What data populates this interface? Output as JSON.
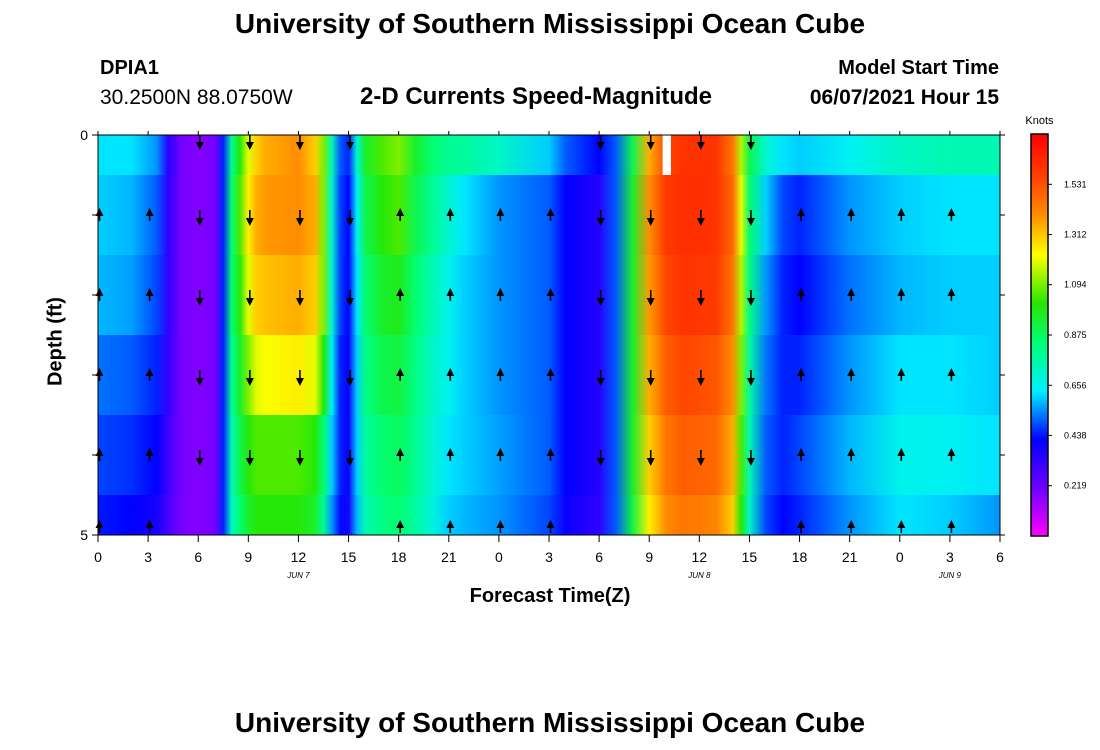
{
  "header": {
    "title": "University of Southern Mississippi Ocean Cube",
    "footer_title": "University of Southern Mississippi Ocean Cube",
    "station": "DPIA1",
    "coordinates": "30.2500N  88.0750W",
    "subtitle": "2-D Currents Speed-Magnitude",
    "model_start_label": "Model Start Time",
    "model_start_value": "06/07/2021 Hour 15"
  },
  "chart_data": {
    "type": "heatmap",
    "title": "2-D Currents Speed-Magnitude",
    "xlabel": "Forecast Time(Z)",
    "ylabel": "Depth (ft)",
    "x_hours": [
      0,
      3,
      6,
      9,
      12,
      15,
      18,
      21,
      24,
      27,
      30,
      33,
      36,
      39,
      42,
      45,
      48,
      51,
      54
    ],
    "x_tick_labels": [
      "0",
      "3",
      "6",
      "9",
      "12",
      "15",
      "18",
      "21",
      "0",
      "3",
      "6",
      "9",
      "12",
      "15",
      "18",
      "21",
      "0",
      "3",
      "6"
    ],
    "x_range": [
      0,
      54
    ],
    "y_range": [
      0,
      5
    ],
    "y_tick_labels": [
      "0",
      "5"
    ],
    "date_labels": [
      {
        "hour": 12,
        "text": "JUN 7"
      },
      {
        "hour": 36,
        "text": "JUN 8"
      },
      {
        "hour": 51,
        "text": "JUN 9"
      }
    ],
    "colorbar": {
      "label": "Knots",
      "min": 0.0,
      "max": 1.75,
      "ticks": [
        "1.531",
        "1.312",
        "1.094",
        "0.875",
        "0.656",
        "0.438",
        "0.219"
      ],
      "tick_values": [
        1.531,
        1.312,
        1.094,
        0.875,
        0.656,
        0.438,
        0.219
      ]
    },
    "layers": [
      {
        "depth_top": 0.0,
        "depth_bottom": 0.5,
        "hours": [
          0,
          2,
          3.5,
          4.2,
          5,
          6,
          7,
          7.5,
          8,
          8.5,
          9,
          9.5,
          10,
          12,
          13,
          13.5,
          14,
          14.5,
          15,
          15.5,
          16,
          17,
          18,
          19,
          20,
          21,
          22,
          24,
          27,
          28,
          30,
          31,
          32,
          33,
          34,
          35,
          37,
          38,
          38.5,
          39,
          40,
          41,
          42,
          45,
          48,
          51,
          54
        ],
        "speeds": [
          0.62,
          0.62,
          0.55,
          0.35,
          0.2,
          0.18,
          0.2,
          0.45,
          0.8,
          1.0,
          1.2,
          1.3,
          1.35,
          1.4,
          1.3,
          1.1,
          0.75,
          0.5,
          0.45,
          0.7,
          0.95,
          1.05,
          1.1,
          0.95,
          0.85,
          0.8,
          0.78,
          0.72,
          0.6,
          0.5,
          0.42,
          0.5,
          0.9,
          1.35,
          1.55,
          1.6,
          1.6,
          1.45,
          1.15,
          0.9,
          0.7,
          0.62,
          0.6,
          0.65,
          0.72,
          0.75,
          0.75
        ]
      },
      {
        "depth_top": 0.5,
        "depth_bottom": 1.5,
        "hours": [
          0,
          2,
          3.5,
          4.2,
          5,
          6,
          7,
          7.5,
          8,
          8.5,
          9,
          9.5,
          10,
          12,
          13,
          13.5,
          14,
          14.5,
          15,
          15.5,
          16,
          17,
          18,
          19,
          20,
          21,
          22,
          24,
          27,
          28,
          30,
          31,
          32,
          33,
          34,
          35,
          37,
          38,
          38.5,
          39,
          40,
          41,
          42,
          45,
          48,
          51,
          54
        ],
        "speeds": [
          0.6,
          0.58,
          0.5,
          0.33,
          0.2,
          0.18,
          0.2,
          0.45,
          0.85,
          1.05,
          1.25,
          1.35,
          1.38,
          1.4,
          1.35,
          1.1,
          0.7,
          0.48,
          0.42,
          0.65,
          0.9,
          1.0,
          1.05,
          0.9,
          0.8,
          0.7,
          0.62,
          0.55,
          0.5,
          0.42,
          0.35,
          0.5,
          0.95,
          1.4,
          1.58,
          1.62,
          1.6,
          1.48,
          1.2,
          0.85,
          0.6,
          0.48,
          0.45,
          0.55,
          0.6,
          0.62,
          0.62
        ]
      },
      {
        "depth_top": 1.5,
        "depth_bottom": 2.5,
        "hours": [
          0,
          2,
          3.5,
          4.2,
          5,
          6,
          7,
          7.5,
          8,
          8.5,
          9,
          9.5,
          10,
          12,
          13,
          13.5,
          14,
          14.5,
          15,
          15.5,
          16,
          17,
          18,
          19,
          20,
          21,
          22,
          24,
          27,
          28,
          30,
          31,
          32,
          33,
          34,
          35,
          37,
          38,
          38.5,
          39,
          40,
          41,
          42,
          45,
          48,
          51,
          54
        ],
        "speeds": [
          0.58,
          0.56,
          0.48,
          0.33,
          0.2,
          0.18,
          0.2,
          0.45,
          0.85,
          1.0,
          1.2,
          1.3,
          1.32,
          1.35,
          1.3,
          1.1,
          0.7,
          0.48,
          0.42,
          0.62,
          0.85,
          0.95,
          0.98,
          0.85,
          0.75,
          0.66,
          0.6,
          0.55,
          0.5,
          0.42,
          0.35,
          0.5,
          0.95,
          1.38,
          1.55,
          1.6,
          1.58,
          1.45,
          1.15,
          0.82,
          0.55,
          0.45,
          0.42,
          0.52,
          0.58,
          0.6,
          0.6
        ]
      },
      {
        "depth_top": 2.5,
        "depth_bottom": 3.5,
        "hours": [
          0,
          2,
          3.5,
          4.2,
          5,
          6,
          7,
          7.5,
          8,
          8.5,
          9,
          9.5,
          10,
          12,
          13,
          13.5,
          14,
          14.5,
          15,
          15.5,
          16,
          17,
          18,
          19,
          20,
          21,
          22,
          24,
          27,
          28,
          30,
          31,
          32,
          33,
          34,
          35,
          37,
          38,
          38.5,
          39,
          40,
          41,
          42,
          45,
          48,
          51,
          54
        ],
        "speeds": [
          0.52,
          0.5,
          0.45,
          0.32,
          0.2,
          0.18,
          0.2,
          0.45,
          0.8,
          0.95,
          1.1,
          1.2,
          1.22,
          1.25,
          1.2,
          1.0,
          0.65,
          0.45,
          0.4,
          0.6,
          0.82,
          0.9,
          0.92,
          0.82,
          0.72,
          0.65,
          0.6,
          0.55,
          0.5,
          0.42,
          0.35,
          0.5,
          0.95,
          1.35,
          1.5,
          1.55,
          1.52,
          1.4,
          1.1,
          0.78,
          0.52,
          0.45,
          0.45,
          0.55,
          0.62,
          0.62,
          0.6
        ]
      },
      {
        "depth_top": 3.5,
        "depth_bottom": 4.5,
        "hours": [
          0,
          2,
          3.5,
          4.2,
          5,
          6,
          7,
          7.5,
          8,
          8.5,
          9,
          9.5,
          10,
          12,
          13,
          13.5,
          14,
          14.5,
          15,
          15.5,
          16,
          17,
          18,
          19,
          20,
          21,
          22,
          24,
          27,
          28,
          30,
          31,
          32,
          33,
          34,
          35,
          37,
          38,
          38.5,
          39,
          40,
          41,
          42,
          45,
          48,
          51,
          54
        ],
        "speeds": [
          0.48,
          0.46,
          0.42,
          0.3,
          0.2,
          0.18,
          0.2,
          0.45,
          0.75,
          0.9,
          1.0,
          1.05,
          1.05,
          1.05,
          1.0,
          0.85,
          0.6,
          0.45,
          0.4,
          0.6,
          0.78,
          0.85,
          0.88,
          0.8,
          0.7,
          0.62,
          0.6,
          0.56,
          0.5,
          0.42,
          0.35,
          0.5,
          0.95,
          1.3,
          1.45,
          1.5,
          1.48,
          1.35,
          1.05,
          0.75,
          0.5,
          0.45,
          0.48,
          0.58,
          0.66,
          0.65,
          0.62
        ]
      },
      {
        "depth_top": 4.5,
        "depth_bottom": 5.0,
        "hours": [
          0,
          2,
          3.5,
          4.2,
          5,
          6,
          7,
          7.5,
          8,
          8.5,
          9,
          9.5,
          10,
          12,
          13,
          13.5,
          14,
          14.5,
          15,
          15.5,
          16,
          17,
          18,
          19,
          20,
          21,
          22,
          24,
          27,
          28,
          30,
          31,
          32,
          33,
          34,
          35,
          37,
          38,
          38.5,
          39,
          40,
          41,
          42,
          45,
          48,
          51,
          54
        ],
        "speeds": [
          0.44,
          0.42,
          0.38,
          0.28,
          0.2,
          0.18,
          0.2,
          0.45,
          0.72,
          0.85,
          0.95,
          1.0,
          1.0,
          1.0,
          0.95,
          0.8,
          0.55,
          0.43,
          0.38,
          0.58,
          0.75,
          0.82,
          0.85,
          0.78,
          0.68,
          0.6,
          0.58,
          0.55,
          0.48,
          0.4,
          0.33,
          0.5,
          0.92,
          1.25,
          1.4,
          1.45,
          1.42,
          1.3,
          1.0,
          0.72,
          0.48,
          0.42,
          0.45,
          0.55,
          0.62,
          0.6,
          0.55
        ]
      }
    ],
    "missing_patch": {
      "hour_start": 33.8,
      "hour_end": 34.3,
      "depth_top": 0.0,
      "depth_bottom": 0.5
    },
    "arrows": {
      "depths": [
        0.0,
        1.0,
        2.0,
        3.0,
        4.0,
        4.9
      ],
      "hours": [
        0,
        3,
        6,
        9,
        12,
        15,
        18,
        21,
        24,
        27,
        30,
        33,
        36,
        39,
        42,
        45,
        48,
        51
      ],
      "directions": [
        [
          null,
          null,
          "down",
          "down",
          "down",
          "down",
          null,
          null,
          null,
          null,
          "down",
          "down",
          "down",
          "down",
          null,
          null,
          null,
          null
        ],
        [
          "up",
          "up",
          "down",
          "down",
          "down",
          "down",
          "up",
          "up",
          "up",
          "up",
          "down",
          "down",
          "down",
          "down",
          "up",
          "up",
          "up",
          "up"
        ],
        [
          "up",
          "up",
          "down",
          "down",
          "down",
          "down",
          "up",
          "up",
          "up",
          "up",
          "down",
          "down",
          "down",
          "down",
          "up",
          "up",
          "up",
          "up"
        ],
        [
          "up",
          "up",
          "down",
          "down",
          "down",
          "down",
          "up",
          "up",
          "up",
          "up",
          "down",
          "down",
          "down",
          "down",
          "up",
          "up",
          "up",
          "up"
        ],
        [
          "up",
          "up",
          "down",
          "down",
          "down",
          "down",
          "up",
          "up",
          "up",
          "up",
          "down",
          "down",
          "down",
          "down",
          "up",
          "up",
          "up",
          "up"
        ],
        [
          "up",
          "up",
          null,
          null,
          null,
          null,
          "up",
          "up",
          "up",
          "up",
          null,
          null,
          null,
          null,
          "up",
          "up",
          "up",
          "up"
        ]
      ]
    }
  }
}
